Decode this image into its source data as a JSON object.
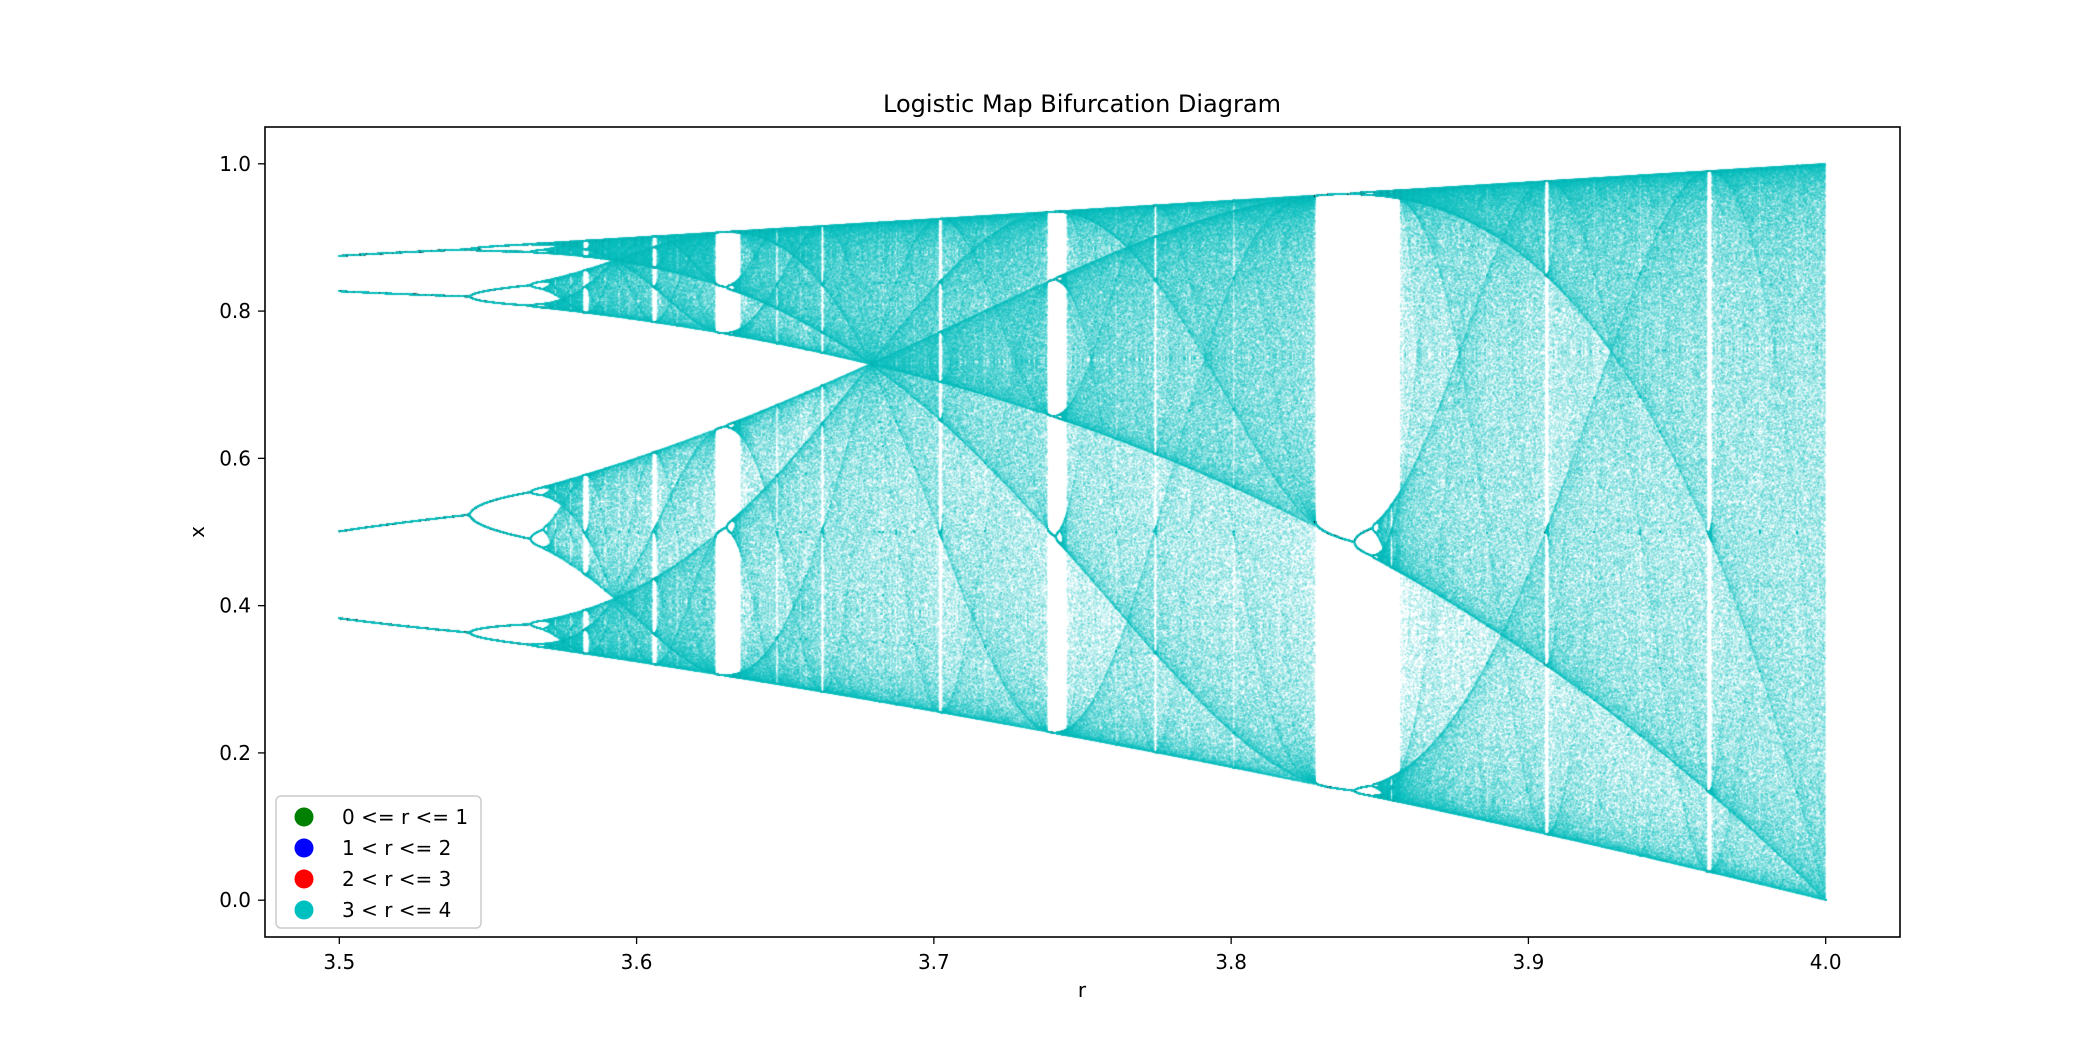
{
  "chart_data": {
    "type": "scatter",
    "title": "Logistic Map Bifurcation Diagram",
    "xlabel": "r",
    "ylabel": "x",
    "xlim": [
      3.475,
      4.025
    ],
    "ylim": [
      -0.05,
      1.05
    ],
    "data_range_r": [
      3.5,
      4.0
    ],
    "x_ticks": [
      3.5,
      3.6,
      3.7,
      3.8,
      3.9,
      4.0
    ],
    "x_tick_labels": [
      "3.5",
      "3.6",
      "3.7",
      "3.8",
      "3.9",
      "4.0"
    ],
    "y_ticks": [
      0.0,
      0.2,
      0.4,
      0.6,
      0.8,
      1.0
    ],
    "y_tick_labels": [
      "0.0",
      "0.2",
      "0.4",
      "0.6",
      "0.8",
      "1.0"
    ],
    "grid": false,
    "legend_position": "lower-left",
    "series": [
      {
        "name": "0 <= r <= 1",
        "color": "#008000",
        "points": []
      },
      {
        "name": "1 < r <= 2",
        "color": "#0000ff",
        "points": []
      },
      {
        "name": "2 < r <= 3",
        "color": "#ff0000",
        "points": []
      },
      {
        "name": "3 < r <= 4",
        "color": "#00bfbf",
        "generated_by": "x_{n+1} = r x_n (1 - x_n)"
      }
    ]
  }
}
